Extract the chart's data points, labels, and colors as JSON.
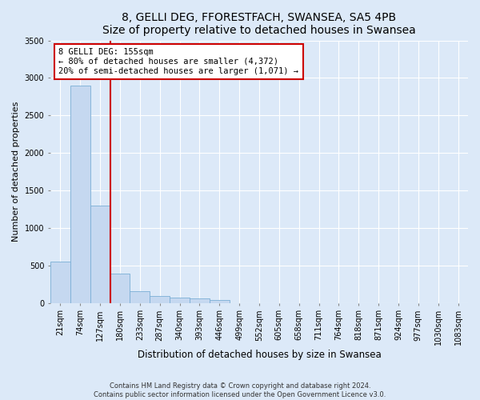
{
  "title": "8, GELLI DEG, FFORESTFACH, SWANSEA, SA5 4PB",
  "subtitle": "Size of property relative to detached houses in Swansea",
  "xlabel": "Distribution of detached houses by size in Swansea",
  "ylabel": "Number of detached properties",
  "footer_line1": "Contains HM Land Registry data © Crown copyright and database right 2024.",
  "footer_line2": "Contains public sector information licensed under the Open Government Licence v3.0.",
  "categories": [
    "21sqm",
    "74sqm",
    "127sqm",
    "180sqm",
    "233sqm",
    "287sqm",
    "340sqm",
    "393sqm",
    "446sqm",
    "499sqm",
    "552sqm",
    "605sqm",
    "658sqm",
    "711sqm",
    "764sqm",
    "818sqm",
    "871sqm",
    "924sqm",
    "977sqm",
    "1030sqm",
    "1083sqm"
  ],
  "values": [
    555,
    2900,
    1300,
    390,
    160,
    90,
    65,
    55,
    40,
    0,
    0,
    0,
    0,
    0,
    0,
    0,
    0,
    0,
    0,
    0,
    0
  ],
  "bar_color": "#c5d8f0",
  "bar_edge_color": "#7aaed6",
  "vline_color": "#cc0000",
  "vline_position": 2.5,
  "annotation_text": "8 GELLI DEG: 155sqm\n← 80% of detached houses are smaller (4,372)\n20% of semi-detached houses are larger (1,071) →",
  "annotation_box_facecolor": "#ffffff",
  "annotation_box_edgecolor": "#cc0000",
  "ylim": [
    0,
    3500
  ],
  "yticks": [
    0,
    500,
    1000,
    1500,
    2000,
    2500,
    3000,
    3500
  ],
  "background_color": "#dce9f8",
  "grid_color": "#ffffff",
  "title_fontsize": 10,
  "subtitle_fontsize": 9,
  "tick_fontsize": 7,
  "ylabel_fontsize": 8,
  "xlabel_fontsize": 8.5,
  "footer_fontsize": 6,
  "annot_fontsize": 7.5
}
